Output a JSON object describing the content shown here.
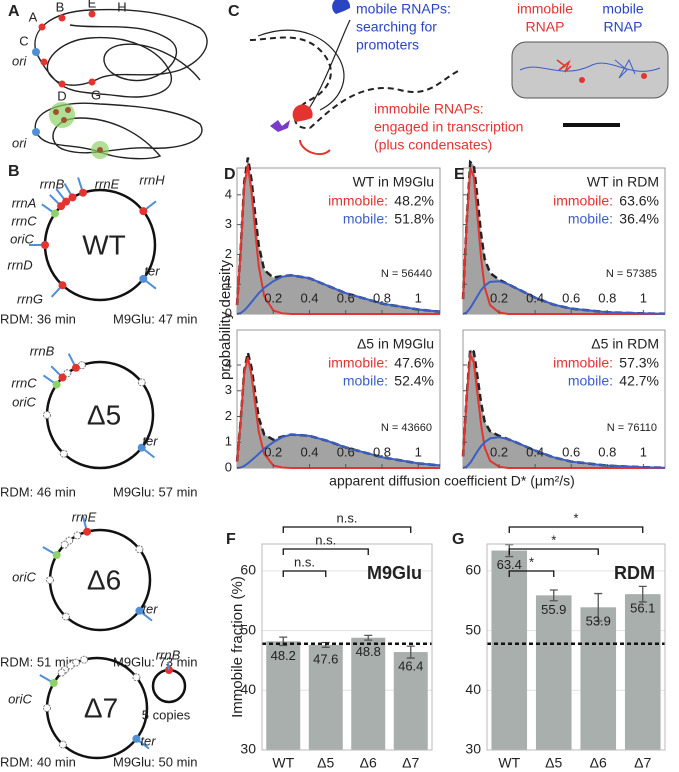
{
  "panel_a": {
    "label": "A",
    "loci": [
      "A",
      "B",
      "E",
      "H",
      "C",
      "D",
      "G"
    ],
    "ori_labels": [
      "ori",
      "ori"
    ]
  },
  "panel_b": {
    "label": "B",
    "genomes": [
      {
        "name": "WT",
        "labels": [
          "rrnB",
          "rrnE",
          "rrnH",
          "rrnA",
          "rrnC",
          "oriC",
          "rrnD",
          "rrnG",
          "ter"
        ],
        "rdm": "RDM: 36 min",
        "m9glu": "M9Glu: 47 min"
      },
      {
        "name": "Δ5",
        "labels": [
          "rrnB",
          "rrnC",
          "oriC",
          "ter"
        ],
        "rdm": "RDM: 46 min",
        "m9glu": "M9Glu: 57 min"
      },
      {
        "name": "Δ6",
        "labels": [
          "rrnE",
          "oriC",
          "ter"
        ],
        "rdm": "RDM: 51 min",
        "m9glu": "M9Glu: 73 min"
      },
      {
        "name": "Δ7",
        "labels": [
          "oriC",
          "ter",
          "rrnB",
          "5 copies"
        ],
        "rdm": "RDM: 40 min",
        "m9glu": "M9Glu: 50 min"
      }
    ]
  },
  "panel_c": {
    "label": "C",
    "mobile_text": [
      "mobile RNAPs:",
      "searching for",
      "promoters"
    ],
    "immobile_text": [
      "immobile RNAPs:",
      "engaged in transcription",
      "(plus condensates)"
    ],
    "image_labels": [
      "immobile",
      "RNAP",
      "mobile",
      "RNAP"
    ]
  },
  "panel_de": {
    "ylabel": "probability density",
    "xlabel": "apparent diffusion coefficient D* (μm²/s)"
  },
  "chart_data": [
    {
      "type": "line",
      "panel_label": "D",
      "annotation": "WT in M9Glu",
      "fractions": [
        {
          "name": "immobile:",
          "color": "#e3342f",
          "text": "48.2%"
        },
        {
          "name": "mobile:",
          "color": "#3b5fc9",
          "text": "51.8%"
        }
      ],
      "n_label": "N = 56440",
      "x": [
        0,
        0.02,
        0.04,
        0.06,
        0.08,
        0.1,
        0.12,
        0.15,
        0.2,
        0.25,
        0.3,
        0.4,
        0.5,
        0.6,
        0.8,
        1.0,
        1.12
      ],
      "series": [
        {
          "color": "#222222",
          "fill": "#a3a3a3",
          "dashed": true,
          "values": [
            0.3,
            2.13,
            4.42,
            5.25,
            4.5,
            3.35,
            2.3,
            1.48,
            1.22,
            1.27,
            1.3,
            1.2,
            0.95,
            0.7,
            0.35,
            0.15,
            0.08
          ]
        },
        {
          "color": "#e3342f",
          "values": [
            0.3,
            2.1,
            4.3,
            5.0,
            4.1,
            2.8,
            1.6,
            0.6,
            0.12,
            0.02,
            0,
            0,
            0,
            0,
            0,
            0,
            0
          ]
        },
        {
          "color": "#3b5fc9",
          "values": [
            0,
            0.03,
            0.12,
            0.25,
            0.4,
            0.55,
            0.7,
            0.88,
            1.1,
            1.25,
            1.3,
            1.2,
            0.95,
            0.7,
            0.35,
            0.15,
            0.08
          ]
        }
      ],
      "xlim": [
        0,
        1.12
      ],
      "ylim": [
        0,
        4.9
      ],
      "xticks": [
        0.2,
        0.4,
        0.6,
        0.8,
        1
      ],
      "yticks": [
        0,
        1,
        2,
        3,
        4
      ],
      "show_yticklabels": true
    },
    {
      "type": "line",
      "panel_label": null,
      "annotation": "Δ5 in M9Glu",
      "fractions": [
        {
          "name": "immobile:",
          "color": "#e3342f",
          "text": "47.6%"
        },
        {
          "name": "mobile:",
          "color": "#3b5fc9",
          "text": "52.4%"
        }
      ],
      "n_label": "N = 43660",
      "x": [
        0,
        0.02,
        0.04,
        0.06,
        0.08,
        0.1,
        0.12,
        0.15,
        0.2,
        0.25,
        0.3,
        0.4,
        0.5,
        0.6,
        0.8,
        1.0,
        1.12
      ],
      "series": [
        {
          "color": "#222222",
          "fill": "#a3a3a3",
          "dashed": true,
          "values": [
            0.25,
            1.82,
            3.78,
            4.48,
            3.9,
            2.92,
            1.95,
            1.3,
            1.1,
            1.22,
            1.3,
            1.25,
            1.05,
            0.8,
            0.42,
            0.18,
            0.1
          ]
        },
        {
          "color": "#e3342f",
          "values": [
            0.25,
            1.8,
            3.7,
            4.3,
            3.6,
            2.5,
            1.4,
            0.55,
            0.1,
            0.02,
            0,
            0,
            0,
            0,
            0,
            0,
            0
          ]
        },
        {
          "color": "#3b5fc9",
          "values": [
            0,
            0.02,
            0.08,
            0.18,
            0.3,
            0.42,
            0.55,
            0.75,
            1.0,
            1.2,
            1.3,
            1.25,
            1.05,
            0.8,
            0.42,
            0.18,
            0.1
          ]
        }
      ],
      "xlim": [
        0,
        1.12
      ],
      "ylim": [
        0,
        5.36
      ],
      "xticks": [
        0.2,
        0.4,
        0.6,
        0.8,
        1
      ],
      "yticks": [
        0,
        1,
        2,
        3,
        4
      ],
      "show_yticklabels": true
    },
    {
      "type": "line",
      "panel_label": "E",
      "annotation": "WT in RDM",
      "fractions": [
        {
          "name": "immobile:",
          "color": "#e3342f",
          "text": "63.6%"
        },
        {
          "name": "mobile:",
          "color": "#3b5fc9",
          "text": "36.4%"
        }
      ],
      "n_label": "N = 57385",
      "x": [
        0,
        0.02,
        0.04,
        0.06,
        0.08,
        0.1,
        0.12,
        0.15,
        0.2,
        0.25,
        0.3,
        0.4,
        0.5,
        0.6,
        0.8,
        1.0,
        1.12
      ],
      "series": [
        {
          "color": "#222222",
          "fill": "#a3a3a3",
          "dashed": true,
          "values": [
            0.5,
            3.05,
            5.1,
            5.0,
            3.9,
            2.7,
            1.85,
            1.38,
            1.15,
            1.0,
            0.85,
            0.55,
            0.32,
            0.18,
            0.06,
            0.02,
            0.01
          ]
        },
        {
          "color": "#e3342f",
          "values": [
            0.5,
            3.0,
            4.9,
            4.6,
            3.3,
            1.9,
            0.9,
            0.3,
            0.05,
            0,
            0,
            0,
            0,
            0,
            0,
            0,
            0
          ]
        },
        {
          "color": "#3b5fc9",
          "values": [
            0,
            0.05,
            0.2,
            0.4,
            0.6,
            0.8,
            0.95,
            1.08,
            1.1,
            1.0,
            0.85,
            0.55,
            0.32,
            0.18,
            0.06,
            0.02,
            0.01
          ]
        }
      ],
      "xlim": [
        0,
        1.12
      ],
      "ylim": [
        0,
        4.9
      ],
      "xticks": [
        0.2,
        0.4,
        0.6,
        0.8,
        1
      ],
      "yticks": [
        0,
        1,
        2,
        3,
        4
      ],
      "show_yticklabels": false
    },
    {
      "type": "line",
      "panel_label": null,
      "annotation": "Δ5 in RDM",
      "fractions": [
        {
          "name": "immobile:",
          "color": "#e3342f",
          "text": "57.3%"
        },
        {
          "name": "mobile:",
          "color": "#3b5fc9",
          "text": "42.7%"
        }
      ],
      "n_label": "N = 76110",
      "x": [
        0,
        0.02,
        0.04,
        0.06,
        0.08,
        0.1,
        0.12,
        0.15,
        0.2,
        0.25,
        0.3,
        0.4,
        0.5,
        0.6,
        0.8,
        1.0,
        1.12
      ],
      "series": [
        {
          "color": "#222222",
          "fill": "#a3a3a3",
          "dashed": true,
          "values": [
            0.45,
            2.75,
            4.6,
            4.52,
            3.55,
            2.55,
            1.8,
            1.43,
            1.25,
            1.12,
            0.98,
            0.68,
            0.42,
            0.25,
            0.09,
            0.03,
            0.01
          ]
        },
        {
          "color": "#e3342f",
          "values": [
            0.45,
            2.7,
            4.4,
            4.1,
            2.9,
            1.7,
            0.8,
            0.28,
            0.05,
            0,
            0,
            0,
            0,
            0,
            0,
            0,
            0
          ]
        },
        {
          "color": "#3b5fc9",
          "values": [
            0,
            0.05,
            0.2,
            0.42,
            0.65,
            0.85,
            1.0,
            1.15,
            1.2,
            1.12,
            0.98,
            0.68,
            0.42,
            0.25,
            0.09,
            0.03,
            0.01
          ]
        }
      ],
      "xlim": [
        0,
        1.12
      ],
      "ylim": [
        0,
        5.36
      ],
      "xticks": [
        0.2,
        0.4,
        0.6,
        0.8,
        1
      ],
      "yticks": [
        0,
        1,
        2,
        3,
        4
      ],
      "show_yticklabels": false
    },
    {
      "type": "bar",
      "panel_label": "F",
      "title": "M9Glu",
      "ylabel": "Immobile fraction (%)",
      "categories": [
        "WT",
        "Δ5",
        "Δ6",
        "Δ7"
      ],
      "values": [
        48.2,
        47.6,
        48.8,
        46.4
      ],
      "errors": [
        0.7,
        0.4,
        0.4,
        1.0
      ],
      "color": "#a9afac",
      "ylim": [
        30,
        64.5
      ],
      "yticks": [
        30,
        40,
        50,
        60
      ],
      "grid": true,
      "reference_line": 47.8,
      "brackets": [
        {
          "from": 0,
          "to": 3,
          "label": "n.s."
        },
        {
          "from": 0,
          "to": 2,
          "label": "n.s."
        },
        {
          "from": 0,
          "to": 1,
          "label": "n.s."
        }
      ]
    },
    {
      "type": "bar",
      "panel_label": "G",
      "title": "RDM",
      "ylabel": null,
      "categories": [
        "WT",
        "Δ5",
        "Δ6",
        "Δ7"
      ],
      "values": [
        63.4,
        55.9,
        53.9,
        56.1
      ],
      "errors": [
        1.0,
        0.9,
        2.3,
        1.3
      ],
      "color": "#a9afac",
      "ylim": [
        30,
        64.5
      ],
      "yticks": [
        30,
        40,
        50,
        60
      ],
      "grid": true,
      "reference_line": 47.8,
      "brackets": [
        {
          "from": 0,
          "to": 3,
          "label": "*"
        },
        {
          "from": 0,
          "to": 2,
          "label": "*"
        },
        {
          "from": 0,
          "to": 1,
          "label": "*"
        }
      ]
    }
  ]
}
